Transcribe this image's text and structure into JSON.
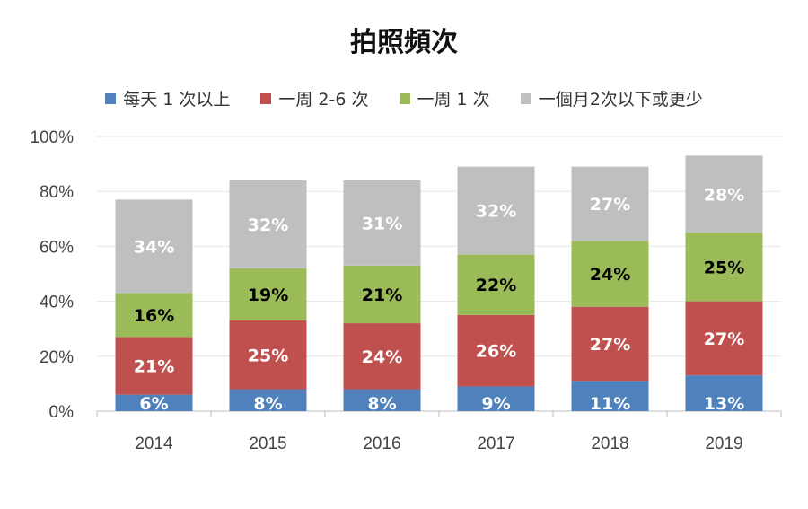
{
  "chart_data": {
    "type": "bar",
    "stacked": true,
    "title": "拍照頻次",
    "categories": [
      "2014",
      "2015",
      "2016",
      "2017",
      "2018",
      "2019"
    ],
    "series": [
      {
        "name": "每天 1 次以上",
        "color": "#4f81bd",
        "label_color": "#ffffff",
        "values": [
          6,
          8,
          8,
          9,
          11,
          13
        ]
      },
      {
        "name": "一周 2-6 次",
        "color": "#c0504d",
        "label_color": "#ffffff",
        "values": [
          21,
          25,
          24,
          26,
          27,
          27
        ]
      },
      {
        "name": "一周 1 次",
        "color": "#9bbb59",
        "label_color": "#000000",
        "values": [
          16,
          19,
          21,
          22,
          24,
          25
        ]
      },
      {
        "name": "一個月2次以下或更少",
        "color": "#bfbfbf",
        "label_color": "#ffffff",
        "values": [
          34,
          32,
          31,
          32,
          27,
          28
        ]
      }
    ],
    "ylim": [
      0,
      100
    ],
    "yticks": [
      "0%",
      "20%",
      "40%",
      "60%",
      "80%",
      "100%"
    ],
    "grid": true,
    "legend_position": "top"
  }
}
